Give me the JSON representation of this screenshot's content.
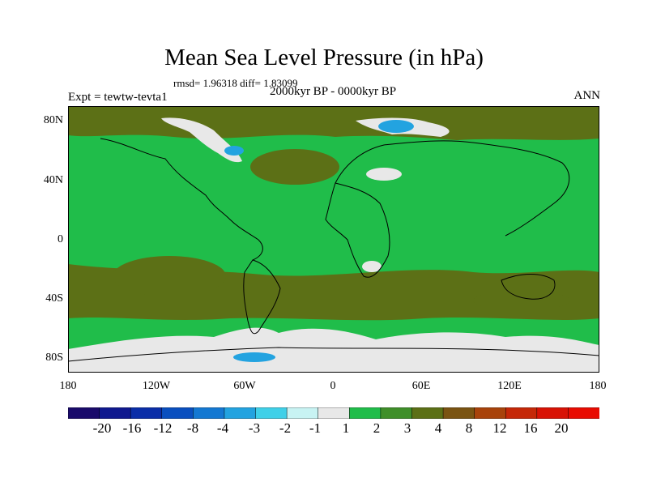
{
  "title": "Mean Sea Level Pressure (in hPa)",
  "stats": "rmsd= 1.96318 diff= 1.83099",
  "experiment": "Expt = tewtw-tevta1",
  "period": "2000kyr BP - 0000kyr BP",
  "season": "ANN",
  "y_axis": {
    "ticks": [
      "80N",
      "40N",
      "0",
      "40S",
      "80S"
    ]
  },
  "x_axis": {
    "ticks": [
      "180",
      "120W",
      "60W",
      "0",
      "60E",
      "120E",
      "180"
    ]
  },
  "colorbar": {
    "labels": [
      "-20",
      "-16",
      "-12",
      "-8",
      "-4",
      "-3",
      "-2",
      "-1",
      "1",
      "2",
      "3",
      "4",
      "8",
      "12",
      "16",
      "20"
    ],
    "colors": [
      "#1a0b6b",
      "#10198f",
      "#0b2ea8",
      "#0a4fbf",
      "#1478d2",
      "#23a3e0",
      "#3fd0e8",
      "#c8f3f3",
      "#e8e8e8",
      "#20bd4a",
      "#3f8f2a",
      "#5c7016",
      "#7a5412",
      "#a8430b",
      "#c52808",
      "#d81205",
      "#e80c02"
    ]
  },
  "map_colors": {
    "positive_1_2": "#20bd4a",
    "positive_3_4": "#5c7016",
    "near_zero": "#e8e8e8",
    "negative": "#23a3e0",
    "coast": "#000000"
  }
}
